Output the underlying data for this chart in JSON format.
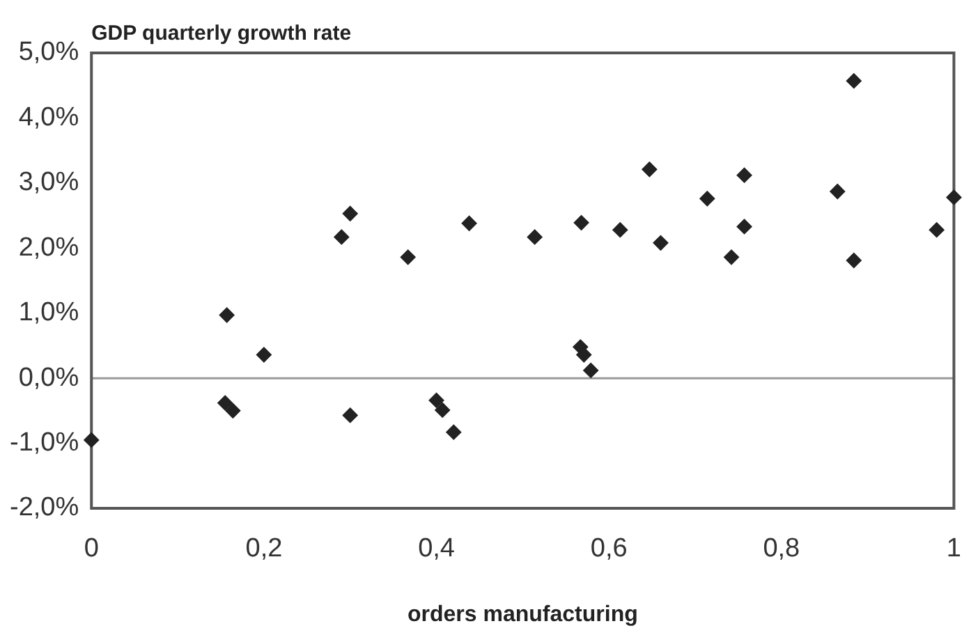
{
  "chart_data": {
    "type": "scatter",
    "title": "GDP quarterly growth rate",
    "xlabel": "orders manufacturing",
    "series": [
      {
        "color": "#222222",
        "x": [
          0,
          0.157,
          0.2,
          0.155,
          0.164,
          0.29,
          0.3,
          0.3,
          0.367,
          0.4,
          0.407,
          0.42,
          0.438,
          0.514,
          0.567,
          0.571,
          0.579,
          0.568,
          0.613,
          0.647,
          0.66,
          0.714,
          0.742,
          0.757,
          0.757,
          0.865,
          0.884,
          0.884,
          0.98,
          1.0
        ],
        "values": [
          -0.95,
          0.97,
          0.36,
          -0.38,
          -0.5,
          2.17,
          2.53,
          -0.57,
          1.86,
          -0.34,
          -0.49,
          -0.83,
          2.38,
          2.17,
          0.48,
          0.36,
          0.12,
          2.39,
          2.28,
          3.21,
          2.08,
          2.76,
          1.86,
          3.12,
          2.33,
          2.87,
          4.57,
          1.81,
          2.28,
          2.78
        ]
      }
    ],
    "xlim": [
      0,
      1
    ],
    "ylim": [
      -2,
      5
    ],
    "xticks": [
      0,
      {
        "value": 0.2,
        "label": "0,2"
      },
      {
        "value": 0.4,
        "label": "0,4"
      },
      {
        "value": 0.6,
        "label": "0,6"
      },
      {
        "value": 0.8,
        "label": "0,8"
      },
      1
    ],
    "yticks": [
      {
        "value": -2,
        "label": "-2,0%"
      },
      {
        "value": -1,
        "label": "-1,0%"
      },
      {
        "value": 0,
        "label": "0,0%"
      },
      {
        "value": 1,
        "label": "1,0%"
      },
      {
        "value": 2,
        "label": "2,0%"
      },
      {
        "value": 3,
        "label": "3,0%"
      },
      {
        "value": 4,
        "label": "4,0%"
      },
      {
        "value": 5,
        "label": "5,0%"
      }
    ],
    "ref_lines": [
      {
        "axis": "y",
        "value": 0,
        "color": "#999999"
      }
    ],
    "grid": false,
    "legend": false,
    "marker": "diamond"
  }
}
